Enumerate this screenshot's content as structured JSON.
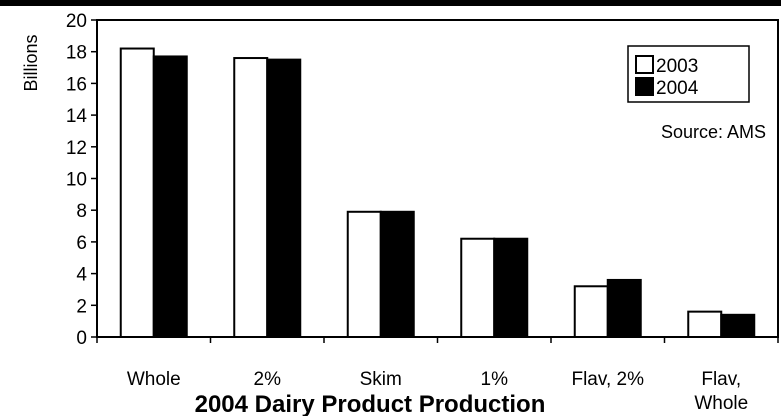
{
  "chart_data": {
    "type": "bar",
    "title": "2004 Dairy Product Production",
    "ylabel": "Billions",
    "xlabel": "",
    "ylim": [
      0,
      20
    ],
    "yticks": [
      0,
      2,
      4,
      6,
      8,
      10,
      12,
      14,
      16,
      18,
      20
    ],
    "categories": [
      "Whole",
      "2%",
      "Skim",
      "1%",
      "Flav, 2%",
      "Flav, Whole"
    ],
    "category_lines": [
      [
        "Whole"
      ],
      [
        "2%"
      ],
      [
        "Skim"
      ],
      [
        "1%"
      ],
      [
        "Flav, 2%"
      ],
      [
        "Flav,",
        "Whole"
      ]
    ],
    "series": [
      {
        "name": "2003",
        "values": [
          18.2,
          17.6,
          7.9,
          6.2,
          3.2,
          1.6
        ],
        "color": "#ffffff"
      },
      {
        "name": "2004",
        "values": [
          17.7,
          17.5,
          7.9,
          6.2,
          3.6,
          1.4
        ],
        "color": "#000000"
      }
    ],
    "grid": false,
    "legend_position": "top-right",
    "annotation": "Source: AMS"
  }
}
